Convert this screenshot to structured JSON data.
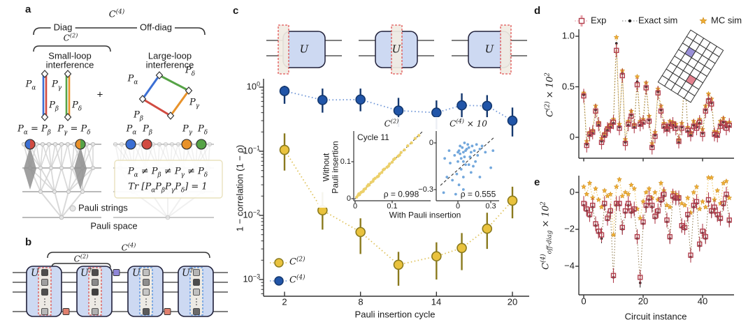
{
  "labels": {
    "a": "a",
    "b": "b",
    "c": "c",
    "d": "d",
    "e": "e",
    "c4": "C^{(4)}",
    "c2": "C^{(2)}",
    "diag": "Diag",
    "offdiag": "Off-diag",
    "small1": "Small-loop",
    "small2": "interference",
    "large1": "Large-loop",
    "large2": "interference",
    "plus": "+",
    "pa": "P_{α}",
    "pb": "P_{β}",
    "pg": "P_{γ}",
    "pd": "P_{δ}",
    "eqab": "P_{α} = P_{β}",
    "eqgd": "P_{γ} = P_{δ}",
    "neq": "P_{α} ≠ P_{β} ≠ P_{γ} ≠ P_{δ}",
    "trace": "Tr [P_{α}P_{β}P_{γ}P_{δ}] = 1",
    "pauli_strings": "Pauli strings",
    "pauli_space": "Pauli space",
    "u": "U",
    "udag": "U^{†}"
  },
  "panel_c": {
    "ylabel": "1 − correlation (1 − ρ)",
    "xlabel": "Pauli insertion cycle",
    "yticks": [
      "10^{0}",
      "10^{−1}",
      "10^{−2}",
      "10^{−3}"
    ],
    "xticks": [
      "2",
      "8",
      "14",
      "20"
    ],
    "legend_c2": "C^{(2)}",
    "legend_c4": "C^{(4)}",
    "inset_left": {
      "title": "C^{(2)}",
      "tag": "Cycle 11",
      "rho": "ρ = 0.998",
      "ytick_hi": "0.1",
      "ytick_lo": "0",
      "xtick_0": "0",
      "xtick_1": "0.1"
    },
    "inset_right": {
      "title": "C^{(4)} × 10",
      "rho": "ρ = 0.555",
      "ytick_hi": "0",
      "ytick_lo": "−0.3",
      "xtick_0": "0",
      "xtick_1": "0.3"
    },
    "inset_xlabel": "With Pauli insertion",
    "inset_ylabel1": "Without",
    "inset_ylabel2": "Pauli insertion"
  },
  "panel_d": {
    "legend": [
      "Exp",
      "Exact sim",
      "MC sim"
    ],
    "ylabel": "C^{(2)} × 10^{2}",
    "yticks": [
      "1.0",
      "0.5",
      "0"
    ]
  },
  "panel_e": {
    "ylabel": "C^{(4)}_{off-diag} × 10^{2}",
    "yticks": [
      "0",
      "−2",
      "−4"
    ],
    "xticks": [
      "0",
      "20",
      "40"
    ],
    "xlabel": "Circuit instance"
  },
  "colors": {
    "blue": "#2155a8",
    "blue_edge": "#14386f",
    "blue_line": "#6b93d6",
    "yellow": "#e9c23d",
    "yellow_edge": "#8a7a1e",
    "yellow_line": "#dfc25a",
    "exp": "#b13e4d",
    "exp_light": "#e8a3ab",
    "exact": "#1a1a1a",
    "exact_line": "#8a7446",
    "mc": "#eead33",
    "mc_edge": "#c8871a",
    "mc_line": "#ecc465",
    "alpha": "#3b6fd4",
    "beta": "#d14b41",
    "gamma": "#e8922a",
    "delta": "#56a346",
    "block": "#cdd9f2",
    "block_edge": "#20203a",
    "red_dash": "#e04848",
    "blue_dash": "#4488dd",
    "dash_fill": "#f1ece3",
    "salmon": "#e0806e",
    "purple": "#8f86d8",
    "lattice_purple": "#9a90d8",
    "lattice_pink": "#e2808e",
    "inset_yellow": "#ecd06a",
    "inset_blue": "#72a7dc",
    "net_line": "#909090",
    "net_edge": "#d0d0d0",
    "net_node_fill": "#e6e6e6",
    "net_node_edge": "#bdbdbd",
    "axis": "#333333"
  },
  "lattice": {
    "cols": 5,
    "rows": 8,
    "purple_cell": [
      1,
      2
    ],
    "pink_cell": [
      3,
      5
    ]
  },
  "chart_data": [
    {
      "id": "c_main",
      "type": "scatter",
      "title": "",
      "xlabel": "Pauli insertion cycle",
      "ylabel": "1 − correlation (1 − ρ)",
      "yscale": "log",
      "ylim": [
        0.0006,
        1.5
      ],
      "xlim": [
        1,
        21
      ],
      "xticks": [
        2,
        8,
        14,
        20
      ],
      "x": [
        2,
        5,
        8,
        11,
        14,
        16,
        18,
        20
      ],
      "series": [
        {
          "name": "C^(2)",
          "values": [
            0.105,
            0.012,
            0.0055,
            0.0017,
            0.0023,
            0.0031,
            0.0062,
            0.017
          ],
          "err_lo": [
            0.05,
            0.006,
            0.0025,
            0.0008,
            0.001,
            0.0014,
            0.003,
            0.009
          ],
          "err_hi": [
            0.19,
            0.023,
            0.009,
            0.0027,
            0.0038,
            0.0053,
            0.011,
            0.028
          ]
        },
        {
          "name": "C^(4)",
          "values": [
            0.87,
            0.63,
            0.64,
            0.43,
            0.4,
            0.52,
            0.51,
            0.3
          ],
          "err_lo": [
            0.55,
            0.4,
            0.42,
            0.24,
            0.22,
            0.3,
            0.33,
            0.17
          ],
          "err_hi": [
            1.05,
            0.95,
            0.95,
            0.68,
            0.62,
            0.8,
            0.75,
            0.48
          ]
        }
      ],
      "legend_position": "lower-left"
    },
    {
      "id": "inset_c2",
      "type": "scatter",
      "title": "C^(2)",
      "annotation": "Cycle 11",
      "rho": 0.998,
      "xlabel": "With Pauli insertion",
      "ylabel": "Without Pauli insertion",
      "xticks": [
        0,
        0.1
      ],
      "yticks": [
        0,
        0.1
      ],
      "xlim": [
        -0.01,
        0.2
      ],
      "ylim": [
        -0.01,
        0.18
      ],
      "fit_line": [
        [
          0,
          0
        ],
        [
          0.18,
          0.18
        ]
      ],
      "points": [
        [
          0.004,
          0.004
        ],
        [
          0.008,
          0.009
        ],
        [
          0.012,
          0.011
        ],
        [
          0.016,
          0.017
        ],
        [
          0.02,
          0.019
        ],
        [
          0.024,
          0.025
        ],
        [
          0.028,
          0.027
        ],
        [
          0.033,
          0.034
        ],
        [
          0.038,
          0.037
        ],
        [
          0.043,
          0.044
        ],
        [
          0.048,
          0.047
        ],
        [
          0.054,
          0.055
        ],
        [
          0.06,
          0.059
        ],
        [
          0.066,
          0.067
        ],
        [
          0.072,
          0.071
        ],
        [
          0.079,
          0.08
        ],
        [
          0.086,
          0.085
        ],
        [
          0.093,
          0.094
        ],
        [
          0.1,
          0.099
        ],
        [
          0.108,
          0.109
        ],
        [
          0.116,
          0.115
        ],
        [
          0.124,
          0.125
        ],
        [
          0.133,
          0.132
        ],
        [
          0.142,
          0.143
        ],
        [
          0.152,
          0.151
        ],
        [
          0.162,
          0.163
        ],
        [
          0.172,
          0.171
        ],
        [
          0.01,
          0.013
        ],
        [
          0.022,
          0.02
        ],
        [
          0.036,
          0.038
        ],
        [
          0.05,
          0.052
        ],
        [
          0.063,
          0.061
        ],
        [
          0.076,
          0.078
        ],
        [
          0.09,
          0.088
        ],
        [
          0.104,
          0.106
        ],
        [
          0.12,
          0.118
        ]
      ]
    },
    {
      "id": "inset_c4",
      "type": "scatter",
      "title": "C^(4) × 10",
      "rho": 0.555,
      "xticks": [
        0,
        0.3
      ],
      "yticks": [
        0,
        -0.3
      ],
      "xlim": [
        -0.17,
        0.36
      ],
      "ylim": [
        -0.37,
        0.04
      ],
      "fit_line": [
        [
          -0.16,
          -0.27
        ],
        [
          0.34,
          0.03
        ]
      ],
      "points": [
        [
          -0.13,
          -0.32
        ],
        [
          -0.02,
          -0.33
        ],
        [
          0.05,
          -0.3
        ],
        [
          -0.1,
          -0.22
        ],
        [
          -0.07,
          -0.13
        ],
        [
          -0.05,
          -0.24
        ],
        [
          -0.03,
          -0.08
        ],
        [
          -0.01,
          -0.2
        ],
        [
          0,
          -0.12
        ],
        [
          0,
          -0.06
        ],
        [
          0.01,
          -0.27
        ],
        [
          0.01,
          -0.05
        ],
        [
          0.02,
          -0.02
        ],
        [
          0.02,
          -0.07
        ],
        [
          0.03,
          -0.1
        ],
        [
          0.03,
          -0.17
        ],
        [
          0.04,
          -0.03
        ],
        [
          0.05,
          -0.06
        ],
        [
          0.05,
          -0.12
        ],
        [
          0.05,
          -0.22
        ],
        [
          0.06,
          0
        ],
        [
          0.06,
          -0.09
        ],
        [
          0.07,
          -0.05
        ],
        [
          0.07,
          -0.14
        ],
        [
          0.08,
          -0.04
        ],
        [
          0.09,
          -0.01
        ],
        [
          0.1,
          -0.03
        ],
        [
          0.1,
          -0.14
        ],
        [
          0.11,
          -0.09
        ],
        [
          0.12,
          -0.06
        ],
        [
          0.12,
          -0.19
        ],
        [
          0.13,
          -0.02
        ],
        [
          0.14,
          -0.15
        ],
        [
          0.15,
          -0.05
        ],
        [
          0.16,
          -0.12
        ],
        [
          0.17,
          -0.01
        ],
        [
          0.18,
          -0.08
        ],
        [
          0.2,
          -0.04
        ],
        [
          0.2,
          -0.22
        ],
        [
          0.22,
          -0.02
        ],
        [
          0.25,
          -0.06
        ],
        [
          0.3,
          -0.16
        ],
        [
          0.32,
          -0.05
        ],
        [
          -0.12,
          -0.1
        ],
        [
          -0.08,
          -0.05
        ]
      ]
    },
    {
      "id": "d",
      "type": "scatter",
      "ylabel": "C^(2) × 10^2",
      "yticks": [
        1.0,
        0.5,
        0
      ],
      "ylim": [
        -0.22,
        1.12
      ],
      "xticks": [
        0,
        20,
        40
      ],
      "n": 50,
      "series": [
        {
          "name": "Exp",
          "err": 0.07,
          "values": [
            0.41,
            -0.08,
            0.03,
            0.05,
            0.26,
            0.13,
            -0.05,
            0.02,
            0.08,
            0.11,
            0.15,
            0.86,
            0.09,
            0.61,
            -0.06,
            0.13,
            0.21,
            0.11,
            0.52,
            0.13,
            0.15,
            0.49,
            0.16,
            -0.1,
            0.01,
            0.44,
            0.26,
            0.11,
            0.08,
            0.11,
            0.13,
            0.09,
            -0.04,
            0.09,
            0.6,
            0.07,
            0.03,
            0.11,
            0.09,
            0.15,
            0.03,
            0.26,
            0.36,
            0.33,
            0.03,
            0.02,
            0.11,
            0.14,
            0.09,
            0.12
          ]
        },
        {
          "name": "Exact sim",
          "values": [
            0.42,
            -0.07,
            0.02,
            0.04,
            0.27,
            0.12,
            -0.04,
            0.01,
            0.07,
            0.1,
            0.14,
            0.93,
            0.1,
            0.63,
            -0.05,
            0.12,
            0.22,
            0.1,
            0.55,
            0.12,
            0.14,
            0.5,
            0.17,
            -0.09,
            0.02,
            0.45,
            0.27,
            0.1,
            0.07,
            0.12,
            0.12,
            0.1,
            -0.05,
            0.1,
            0.62,
            0.06,
            0.02,
            0.12,
            0.1,
            0.14,
            0.04,
            0.27,
            0.38,
            0.34,
            0.02,
            0.01,
            0.12,
            0.15,
            0.1,
            0.11
          ]
        },
        {
          "name": "MC sim",
          "values": [
            0.44,
            -0.04,
            0.05,
            0.07,
            0.31,
            0.15,
            -0.01,
            0.04,
            0.1,
            0.13,
            0.18,
            0.99,
            0.13,
            0.66,
            -0.02,
            0.16,
            0.26,
            0.13,
            0.6,
            0.16,
            0.18,
            0.54,
            0.21,
            -0.06,
            0.05,
            0.48,
            0.31,
            0.14,
            0.1,
            0.16,
            0.15,
            0.13,
            -0.02,
            0.14,
            0.65,
            0.1,
            0.05,
            0.16,
            0.13,
            0.18,
            0.08,
            0.31,
            0.43,
            0.38,
            0.06,
            0.05,
            0.16,
            0.19,
            0.14,
            0.15
          ]
        }
      ]
    },
    {
      "id": "e",
      "type": "scatter",
      "ylabel": "C^(4)_off-diag × 10^2",
      "xlabel": "Circuit instance",
      "yticks": [
        0,
        -2,
        -4
      ],
      "ylim": [
        -5.2,
        0.9
      ],
      "xticks": [
        0,
        20,
        40
      ],
      "n": 50,
      "series": [
        {
          "name": "Exp",
          "err": 0.4,
          "values": [
            -0.6,
            -0.9,
            -1.2,
            -0.7,
            -1.7,
            -2.1,
            -2.3,
            -0.6,
            -1.4,
            -1.0,
            -4.5,
            -0.6,
            -0.6,
            -1.9,
            -1.0,
            -0.6,
            -1.0,
            -0.9,
            -2.4,
            -4.6,
            -1.6,
            -0.7,
            -0.3,
            -0.7,
            -1.3,
            -1.0,
            -0.4,
            -0.1,
            -1.5,
            -2.4,
            -0.2,
            -0.3,
            -0.3,
            -1.8,
            -1.9,
            -1.2,
            -3.4,
            -0.7,
            -0.5,
            -2.8,
            -2.1,
            -2.4,
            -0.4,
            -1.0,
            -0.8,
            -1.2,
            -1.4,
            -0.6,
            -0.1,
            -1.5
          ]
        },
        {
          "name": "Exact sim",
          "err": 0.25,
          "values": [
            -0.7,
            -1.0,
            -1.3,
            -0.8,
            -1.8,
            -2.2,
            -2.5,
            -0.7,
            -1.5,
            -1.1,
            -4.6,
            -0.7,
            -0.7,
            -2.0,
            -1.1,
            -0.7,
            -1.1,
            -1.0,
            -2.5,
            -4.9,
            -1.7,
            -0.8,
            -0.4,
            -0.8,
            -1.4,
            -1.1,
            -0.5,
            -0.2,
            -1.6,
            -2.5,
            -0.3,
            -0.4,
            -0.4,
            -1.9,
            -2.0,
            -1.3,
            -3.5,
            -0.8,
            -0.6,
            -2.9,
            -2.2,
            -2.5,
            -0.5,
            -1.1,
            -0.9,
            -1.3,
            -1.5,
            -0.7,
            -0.2,
            -1.6
          ]
        },
        {
          "name": "MC sim",
          "values": [
            0.3,
            -0.1,
            0.5,
            -0.3,
            0.2,
            -0.4,
            -0.8,
            0.1,
            -0.2,
            -0.1,
            -2.3,
            0.3,
            0.7,
            -0.2,
            0.0,
            -0.1,
            0.4,
            0.2,
            -0.9,
            -1.4,
            -0.5,
            0.0,
            0.2,
            -0.3,
            0.0,
            -0.4,
            0.5,
            0.1,
            -0.7,
            -0.8,
            0.0,
            -0.1,
            -0.2,
            -0.6,
            -0.7,
            -0.3,
            -1.1,
            0.0,
            0.3,
            -0.9,
            -0.5,
            -0.8,
            0.8,
            0.8,
            -0.4,
            0.1,
            -0.6,
            0.5,
            0.6,
            -0.3
          ]
        }
      ]
    }
  ]
}
